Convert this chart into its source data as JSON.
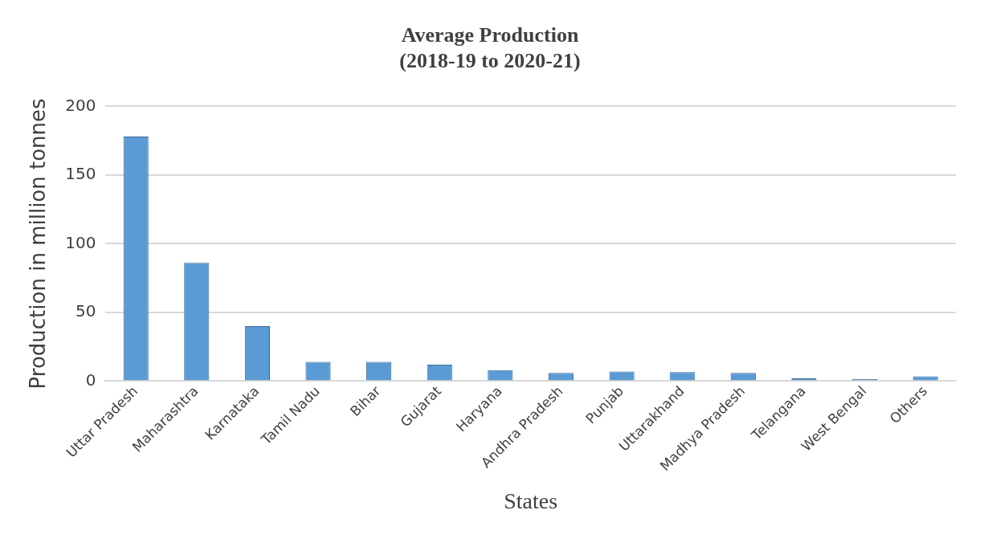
{
  "chart_data": {
    "type": "bar",
    "title": [
      "Average Production",
      "(2018-19 to 2020-21)"
    ],
    "xlabel": "States",
    "ylabel": "Production in million tonnes",
    "categories": [
      "Uttar Pradesh",
      "Maharashtra",
      "Karnataka",
      "Tamil Nadu",
      "Bihar",
      "Gujarat",
      "Haryana",
      "Andhra Pradesh",
      "Punjab",
      "Uttarakhand",
      "Madhya Pradesh",
      "Telangana",
      "West Bengal",
      "Others"
    ],
    "values": [
      178,
      86,
      40,
      14,
      14,
      12,
      8,
      6,
      7,
      6.5,
      6,
      2,
      1.5,
      3.5
    ],
    "color": "#5b9bd5",
    "ylim": [
      0,
      200
    ],
    "yticks": [
      0,
      50,
      100,
      150,
      200
    ],
    "grid": "y"
  }
}
